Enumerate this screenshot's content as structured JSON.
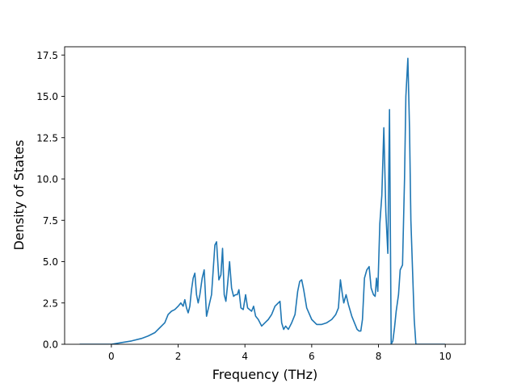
{
  "chart_data": {
    "type": "line",
    "title": "",
    "xlabel": "Frequency (THz)",
    "ylabel": "Density of States",
    "xlim": [
      -1.4,
      10.6
    ],
    "ylim": [
      0,
      18.0
    ],
    "xticks": [
      0,
      2,
      4,
      6,
      8,
      10
    ],
    "xtick_labels": [
      "0",
      "2",
      "4",
      "6",
      "8",
      "10"
    ],
    "yticks": [
      0.0,
      2.5,
      5.0,
      7.5,
      10.0,
      12.5,
      15.0,
      17.5
    ],
    "ytick_labels": [
      "0.0",
      "2.5",
      "5.0",
      "7.5",
      "10.0",
      "12.5",
      "15.0",
      "17.5"
    ],
    "grid": false,
    "series_color": "#1f77b4",
    "series": [
      {
        "name": "",
        "x": [
          -0.95,
          0.0,
          0.3,
          0.6,
          0.9,
          1.1,
          1.3,
          1.45,
          1.6,
          1.7,
          1.8,
          1.9,
          2.0,
          2.08,
          2.15,
          2.2,
          2.25,
          2.3,
          2.35,
          2.4,
          2.45,
          2.5,
          2.55,
          2.6,
          2.65,
          2.72,
          2.78,
          2.85,
          2.92,
          3.0,
          3.05,
          3.1,
          3.15,
          3.22,
          3.28,
          3.33,
          3.38,
          3.43,
          3.48,
          3.54,
          3.6,
          3.66,
          3.72,
          3.77,
          3.82,
          3.88,
          3.95,
          4.02,
          4.08,
          4.14,
          4.2,
          4.26,
          4.32,
          4.4,
          4.5,
          4.6,
          4.7,
          4.8,
          4.9,
          5.0,
          5.05,
          5.1,
          5.16,
          5.22,
          5.3,
          5.4,
          5.5,
          5.58,
          5.64,
          5.7,
          5.76,
          5.85,
          6.0,
          6.15,
          6.3,
          6.45,
          6.6,
          6.72,
          6.8,
          6.86,
          6.92,
          6.96,
          7.03,
          7.1,
          7.2,
          7.3,
          7.36,
          7.42,
          7.47,
          7.52,
          7.58,
          7.65,
          7.72,
          7.78,
          7.85,
          7.9,
          7.94,
          7.98,
          8.04,
          8.1,
          8.16,
          8.22,
          8.28,
          8.33,
          8.38,
          8.43,
          8.48,
          8.53,
          8.6,
          8.65,
          8.72,
          8.78,
          8.82,
          8.88,
          8.93,
          8.97,
          9.02,
          9.07,
          9.12,
          9.18,
          9.25,
          10.0
        ],
        "y": [
          0.0,
          0.0,
          0.1,
          0.2,
          0.35,
          0.5,
          0.7,
          1.0,
          1.3,
          1.8,
          2.0,
          2.1,
          2.3,
          2.5,
          2.3,
          2.7,
          2.2,
          1.9,
          2.3,
          3.3,
          4.0,
          4.3,
          3.0,
          2.5,
          3.0,
          4.0,
          4.5,
          1.7,
          2.3,
          3.0,
          4.5,
          6.0,
          6.2,
          3.9,
          4.2,
          5.8,
          3.0,
          2.6,
          3.6,
          5.0,
          3.4,
          2.9,
          3.0,
          3.0,
          3.3,
          2.2,
          2.1,
          3.0,
          2.2,
          2.1,
          2.0,
          2.3,
          1.7,
          1.5,
          1.1,
          1.3,
          1.5,
          1.8,
          2.3,
          2.5,
          2.6,
          1.3,
          0.9,
          1.1,
          0.9,
          1.3,
          1.8,
          3.2,
          3.8,
          3.9,
          3.3,
          2.2,
          1.5,
          1.2,
          1.2,
          1.3,
          1.5,
          1.8,
          2.2,
          3.9,
          3.0,
          2.5,
          3.0,
          2.4,
          1.7,
          1.2,
          0.9,
          0.8,
          0.8,
          1.5,
          4.0,
          4.5,
          4.7,
          3.4,
          3.0,
          2.9,
          4.0,
          3.2,
          7.3,
          9.0,
          13.1,
          8.0,
          5.5,
          14.2,
          0.0,
          0.2,
          1.0,
          2.0,
          3.0,
          4.5,
          4.8,
          10.0,
          15.0,
          17.3,
          13.0,
          7.5,
          4.5,
          1.5,
          0.0,
          0.0,
          0.0,
          0.0
        ]
      }
    ]
  }
}
